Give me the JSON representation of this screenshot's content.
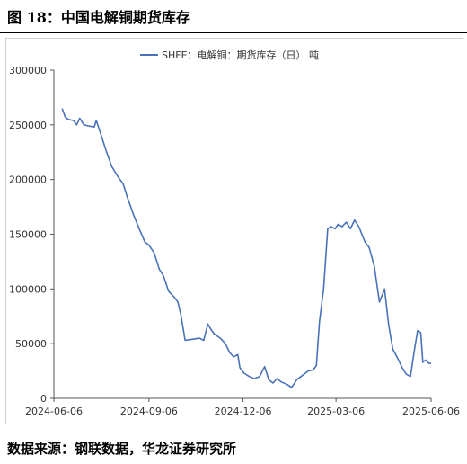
{
  "figure": {
    "title": "图 18：中国电解铜期货库存",
    "source": "数据来源：钢联数据，华龙证券研究所"
  },
  "chart_data": {
    "type": "line",
    "title": "",
    "xlabel": "",
    "ylabel": "",
    "ylim": [
      0,
      300000
    ],
    "yticks": [
      "0",
      "50000",
      "100000",
      "150000",
      "200000",
      "250000",
      "300000"
    ],
    "xticks": [
      "2024-06-06",
      "2024-09-06",
      "2024-12-06",
      "2025-03-06",
      "2025-06-06"
    ],
    "xlim": [
      "2024-06-06",
      "2025-06-06"
    ],
    "grid": false,
    "legend": "top-center",
    "color": "#4a72b8",
    "series": [
      {
        "name": "SHFE：电解铜：期货库存（日）  吨",
        "points": [
          [
            "2024-06-14",
            265000
          ],
          [
            "2024-06-17",
            257000
          ],
          [
            "2024-06-20",
            255000
          ],
          [
            "2024-06-25",
            254000
          ],
          [
            "2024-06-28",
            250000
          ],
          [
            "2024-07-01",
            256000
          ],
          [
            "2024-07-05",
            250000
          ],
          [
            "2024-07-10",
            249000
          ],
          [
            "2024-07-15",
            248000
          ],
          [
            "2024-07-17",
            254000
          ],
          [
            "2024-07-22",
            240000
          ],
          [
            "2024-07-26",
            228000
          ],
          [
            "2024-08-01",
            212000
          ],
          [
            "2024-08-06",
            204000
          ],
          [
            "2024-08-12",
            196000
          ],
          [
            "2024-08-16",
            184000
          ],
          [
            "2024-08-22",
            168000
          ],
          [
            "2024-08-28",
            154000
          ],
          [
            "2024-09-02",
            143000
          ],
          [
            "2024-09-06",
            140000
          ],
          [
            "2024-09-11",
            133000
          ],
          [
            "2024-09-16",
            118000
          ],
          [
            "2024-09-20",
            112000
          ],
          [
            "2024-09-25",
            98000
          ],
          [
            "2024-09-30",
            93000
          ],
          [
            "2024-10-04",
            88000
          ],
          [
            "2024-10-07",
            76000
          ],
          [
            "2024-10-11",
            53000
          ],
          [
            "2024-10-18",
            54000
          ],
          [
            "2024-10-25",
            55000
          ],
          [
            "2024-10-29",
            53000
          ],
          [
            "2024-11-02",
            68000
          ],
          [
            "2024-11-05",
            63000
          ],
          [
            "2024-11-08",
            59000
          ],
          [
            "2024-11-14",
            55000
          ],
          [
            "2024-11-19",
            50000
          ],
          [
            "2024-11-23",
            42000
          ],
          [
            "2024-11-27",
            38000
          ],
          [
            "2024-12-01",
            40000
          ],
          [
            "2024-12-03",
            28000
          ],
          [
            "2024-12-07",
            23000
          ],
          [
            "2024-12-12",
            20000
          ],
          [
            "2024-12-17",
            18000
          ],
          [
            "2024-12-22",
            20000
          ],
          [
            "2024-12-27",
            29000
          ],
          [
            "2024-12-31",
            17000
          ],
          [
            "2025-01-04",
            14000
          ],
          [
            "2025-01-08",
            18000
          ],
          [
            "2025-01-12",
            15000
          ],
          [
            "2025-01-17",
            13000
          ],
          [
            "2025-01-22",
            10000
          ],
          [
            "2025-01-27",
            17000
          ],
          [
            "2025-02-03",
            22000
          ],
          [
            "2025-02-07",
            25000
          ],
          [
            "2025-02-12",
            26000
          ],
          [
            "2025-02-15",
            30000
          ],
          [
            "2025-02-18",
            70000
          ],
          [
            "2025-02-22",
            100000
          ],
          [
            "2025-02-26",
            155000
          ],
          [
            "2025-03-01",
            157000
          ],
          [
            "2025-03-05",
            155000
          ],
          [
            "2025-03-08",
            159000
          ],
          [
            "2025-03-12",
            157000
          ],
          [
            "2025-03-16",
            161000
          ],
          [
            "2025-03-20",
            155000
          ],
          [
            "2025-03-24",
            163000
          ],
          [
            "2025-03-28",
            157000
          ],
          [
            "2025-04-03",
            143000
          ],
          [
            "2025-04-07",
            138000
          ],
          [
            "2025-04-12",
            121000
          ],
          [
            "2025-04-17",
            88000
          ],
          [
            "2025-04-22",
            100000
          ],
          [
            "2025-04-26",
            67000
          ],
          [
            "2025-04-30",
            45000
          ],
          [
            "2025-05-05",
            36000
          ],
          [
            "2025-05-09",
            28000
          ],
          [
            "2025-05-13",
            22000
          ],
          [
            "2025-05-17",
            20000
          ],
          [
            "2025-05-21",
            45000
          ],
          [
            "2025-05-24",
            62000
          ],
          [
            "2025-05-27",
            60000
          ],
          [
            "2025-05-29",
            33000
          ],
          [
            "2025-06-01",
            35000
          ],
          [
            "2025-06-04",
            32000
          ],
          [
            "2025-06-06",
            32000
          ]
        ]
      }
    ]
  }
}
